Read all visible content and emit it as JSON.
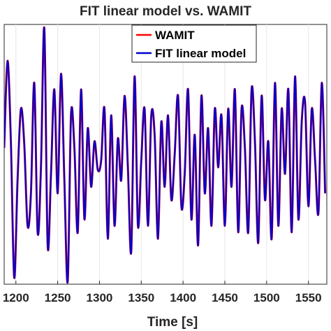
{
  "chart_data": {
    "type": "line",
    "title": "FIT linear model vs. WAMIT",
    "xlabel": "Time [s]",
    "ylabel": "",
    "xlim": [
      1186,
      1572
    ],
    "ylim": [
      -1.0,
      1.0
    ],
    "x_ticks": [
      1200,
      1250,
      1300,
      1350,
      1400,
      1450,
      1500,
      1550
    ],
    "x_tick_labels": [
      "1200",
      "1250",
      "1300",
      "1350",
      "1400",
      "1450",
      "1500",
      "1550"
    ],
    "grid": true,
    "legend_position": "top-right",
    "series": [
      {
        "name": "WAMIT",
        "color": "#ff0000",
        "x": [
          1186,
          1190,
          1194,
          1198,
          1202,
          1206,
          1210,
          1214,
          1218,
          1222,
          1226,
          1230,
          1234,
          1238,
          1242,
          1246,
          1250,
          1254,
          1258,
          1262,
          1266,
          1270,
          1274,
          1278,
          1282,
          1286,
          1290,
          1294,
          1298,
          1302,
          1306,
          1310,
          1314,
          1318,
          1322,
          1326,
          1330,
          1334,
          1338,
          1342,
          1346,
          1350,
          1354,
          1358,
          1362,
          1366,
          1370,
          1374,
          1378,
          1382,
          1386,
          1390,
          1394,
          1398,
          1402,
          1406,
          1410,
          1414,
          1418,
          1422,
          1426,
          1430,
          1434,
          1438,
          1442,
          1446,
          1450,
          1454,
          1458,
          1462,
          1466,
          1470,
          1474,
          1478,
          1482,
          1486,
          1490,
          1494,
          1498,
          1502,
          1506,
          1510,
          1514,
          1518,
          1522,
          1526,
          1530,
          1534,
          1538,
          1542,
          1546,
          1550,
          1554,
          1558,
          1562,
          1566,
          1570
        ],
        "y": [
          0.05,
          0.72,
          0.1,
          -0.95,
          -0.2,
          0.35,
          0.08,
          -0.55,
          -0.3,
          0.55,
          -0.6,
          -0.1,
          0.97,
          -0.7,
          -0.15,
          0.5,
          -0.3,
          0.62,
          -0.2,
          -0.98,
          0.31,
          0.05,
          -0.6,
          0.5,
          -0.5,
          0.2,
          -0.25,
          0.1,
          -0.12,
          -0.05,
          0.35,
          -0.65,
          0.3,
          -0.55,
          0.12,
          -0.2,
          0.45,
          -0.1,
          -0.75,
          0.6,
          -0.55,
          -0.05,
          0.35,
          -0.55,
          0.3,
          0.15,
          -0.65,
          0.25,
          -0.25,
          0.3,
          -0.35,
          0.0,
          0.45,
          -0.4,
          -0.15,
          0.5,
          -0.5,
          0.15,
          -0.7,
          0.45,
          -0.3,
          0.2,
          -0.55,
          0.35,
          -0.1,
          0.3,
          -0.55,
          0.35,
          -0.25,
          0.5,
          -0.6,
          0.35,
          0.05,
          -0.6,
          0.5,
          0.1,
          -0.68,
          0.45,
          -0.35,
          0.1,
          -0.65,
          0.55,
          -0.55,
          0.35,
          -0.15,
          0.5,
          -0.6,
          0.6,
          -0.5,
          0.25,
          0.4,
          -0.4,
          0.35,
          -0.05,
          -0.45,
          0.55,
          -0.3
        ]
      },
      {
        "name": "FIT linear model",
        "color": "#0000cc",
        "x": [
          1186,
          1190,
          1194,
          1198,
          1202,
          1206,
          1210,
          1214,
          1218,
          1222,
          1226,
          1230,
          1234,
          1238,
          1242,
          1246,
          1250,
          1254,
          1258,
          1262,
          1266,
          1270,
          1274,
          1278,
          1282,
          1286,
          1290,
          1294,
          1298,
          1302,
          1306,
          1310,
          1314,
          1318,
          1322,
          1326,
          1330,
          1334,
          1338,
          1342,
          1346,
          1350,
          1354,
          1358,
          1362,
          1366,
          1370,
          1374,
          1378,
          1382,
          1386,
          1390,
          1394,
          1398,
          1402,
          1406,
          1410,
          1414,
          1418,
          1422,
          1426,
          1430,
          1434,
          1438,
          1442,
          1446,
          1450,
          1454,
          1458,
          1462,
          1466,
          1470,
          1474,
          1478,
          1482,
          1486,
          1490,
          1494,
          1498,
          1502,
          1506,
          1510,
          1514,
          1518,
          1522,
          1526,
          1530,
          1534,
          1538,
          1542,
          1546,
          1550,
          1554,
          1558,
          1562,
          1566,
          1570
        ],
        "y": [
          0.05,
          0.72,
          0.1,
          -0.95,
          -0.2,
          0.35,
          0.08,
          -0.55,
          -0.3,
          0.55,
          -0.6,
          -0.1,
          0.97,
          -0.7,
          -0.15,
          0.5,
          -0.3,
          0.62,
          -0.2,
          -0.98,
          0.31,
          0.05,
          -0.6,
          0.5,
          -0.5,
          0.2,
          -0.25,
          0.1,
          -0.12,
          -0.05,
          0.35,
          -0.65,
          0.3,
          -0.55,
          0.12,
          -0.2,
          0.45,
          -0.1,
          -0.75,
          0.6,
          -0.55,
          -0.05,
          0.35,
          -0.55,
          0.3,
          0.15,
          -0.65,
          0.25,
          -0.25,
          0.3,
          -0.35,
          0.0,
          0.45,
          -0.4,
          -0.15,
          0.5,
          -0.5,
          0.15,
          -0.7,
          0.45,
          -0.3,
          0.2,
          -0.55,
          0.35,
          -0.1,
          0.3,
          -0.55,
          0.35,
          -0.25,
          0.5,
          -0.6,
          0.35,
          0.05,
          -0.6,
          0.5,
          0.1,
          -0.68,
          0.45,
          -0.35,
          0.1,
          -0.65,
          0.55,
          -0.55,
          0.35,
          -0.15,
          0.5,
          -0.6,
          0.6,
          -0.5,
          0.25,
          0.4,
          -0.4,
          0.35,
          -0.05,
          -0.45,
          0.55,
          -0.3
        ]
      }
    ]
  }
}
